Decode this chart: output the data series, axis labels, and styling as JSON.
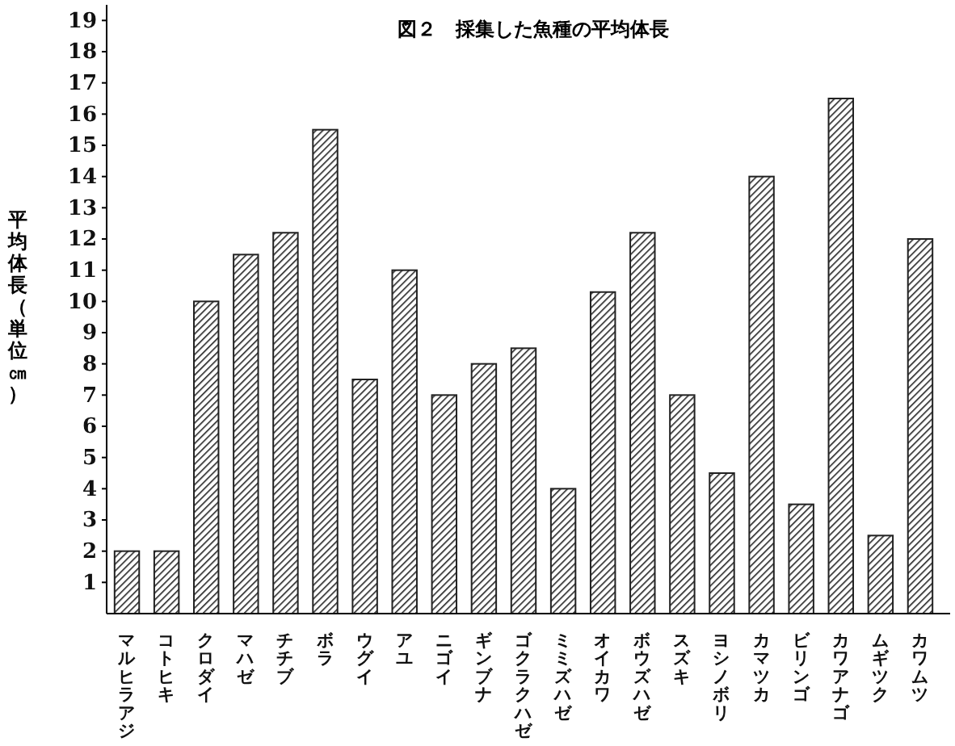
{
  "chart_data": {
    "type": "bar",
    "title": "図２　採集した魚種の平均体長",
    "ylabel": "平均体長（単位㎝）",
    "categories": [
      "マルヒラアジ",
      "コトヒキ",
      "クロダイ",
      "マハゼ",
      "チチブ",
      "ボラ",
      "ウグイ",
      "アユ",
      "ニゴイ",
      "ギンブナ",
      "ゴクラクハゼ",
      "ミミズハゼ",
      "オイカワ",
      "ボウズハゼ",
      "スズキ",
      "ヨシノボリ",
      "カマツカ",
      "ビリンゴ",
      "カワアナゴ",
      "ムギツク",
      "カワムツ"
    ],
    "values": [
      2,
      2,
      10,
      11.5,
      12.2,
      15.5,
      7.5,
      11,
      7,
      8,
      8.5,
      4,
      10.3,
      12.2,
      7,
      4.5,
      14,
      3.5,
      16.5,
      2.5,
      12
    ],
    "color": "#222222",
    "ylim": [
      0,
      19.5
    ],
    "yticks": [
      1,
      2,
      3,
      4,
      5,
      6,
      7,
      8,
      9,
      10,
      11,
      12,
      13,
      14,
      15,
      16,
      17,
      18,
      19
    ],
    "grid": false
  }
}
